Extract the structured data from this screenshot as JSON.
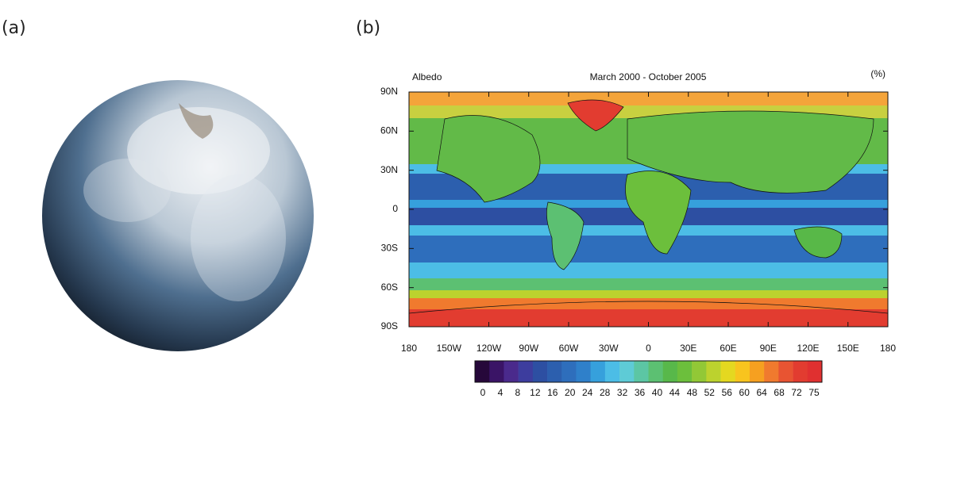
{
  "panels": {
    "a": {
      "label": "(a)"
    },
    "b": {
      "label": "(b)"
    }
  },
  "map": {
    "title_left": "Albedo",
    "title_center": "March 2000 - October 2005",
    "units": "(%)",
    "lat_ticks": [
      "90N",
      "60N",
      "30N",
      "0",
      "30S",
      "60S",
      "90S"
    ],
    "lon_ticks": [
      "180",
      "150W",
      "120W",
      "90W",
      "60W",
      "30W",
      "0",
      "30E",
      "60E",
      "90E",
      "120E",
      "150E",
      "180"
    ],
    "colorbar": {
      "labels": [
        0,
        4,
        8,
        12,
        16,
        20,
        24,
        28,
        32,
        36,
        40,
        44,
        48,
        52,
        56,
        60,
        64,
        68,
        72,
        75
      ],
      "colors": [
        "#26083a",
        "#3a1466",
        "#4a2a8c",
        "#3d3d9e",
        "#2d4fa2",
        "#2c5fae",
        "#2e6ebc",
        "#2f80ca",
        "#36a0dc",
        "#4cbde6",
        "#5ecbd6",
        "#5cc6a4",
        "#5cc072",
        "#58b84a",
        "#6cbf3c",
        "#92c836",
        "#bcd22e",
        "#e4d820",
        "#f8c41e",
        "#f6a020",
        "#f07a2e",
        "#e85432",
        "#e23c30",
        "#e03030"
      ]
    }
  }
}
